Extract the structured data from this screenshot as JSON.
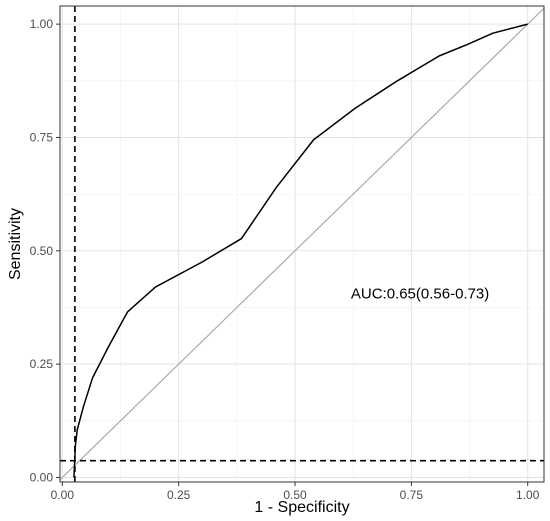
{
  "chart_data": {
    "type": "line",
    "title": "",
    "xlabel": "1 - Specificity",
    "ylabel": "Sensitivity",
    "xlim": [
      -0.005,
      1.035
    ],
    "ylim": [
      -0.01,
      1.04
    ],
    "x_ticks": [
      0.0,
      0.25,
      0.5,
      0.75,
      1.0
    ],
    "x_tick_labels": [
      "0.00",
      "0.25",
      "0.50",
      "0.75",
      "1.00"
    ],
    "y_ticks": [
      0.0,
      0.25,
      0.5,
      0.75,
      1.0
    ],
    "y_tick_labels": [
      "0.00",
      "0.25",
      "0.50",
      "0.75",
      "1.00"
    ],
    "grid": true,
    "legend": "none",
    "series": [
      {
        "color": "#000000",
        "style": "solid",
        "x": [
          0.025,
          0.028,
          0.032,
          0.045,
          0.065,
          0.1,
          0.14,
          0.2,
          0.3,
          0.385,
          0.46,
          0.54,
          0.63,
          0.72,
          0.81,
          0.87,
          0.925,
          1.0
        ],
        "y": [
          0.0,
          0.07,
          0.105,
          0.155,
          0.22,
          0.29,
          0.365,
          0.42,
          0.475,
          0.527,
          0.64,
          0.745,
          0.815,
          0.875,
          0.93,
          0.955,
          0.98,
          1.0
        ]
      }
    ],
    "reference_line": {
      "type": "diagonal",
      "color": "#aaaaaa"
    },
    "threshold_lines": {
      "vline_x": 0.027,
      "hline_y": 0.037,
      "color": "#000000",
      "style": "dashed"
    },
    "annotation": {
      "text": "AUC:0.65(0.56-0.73)",
      "x": 0.62,
      "y": 0.395
    }
  }
}
